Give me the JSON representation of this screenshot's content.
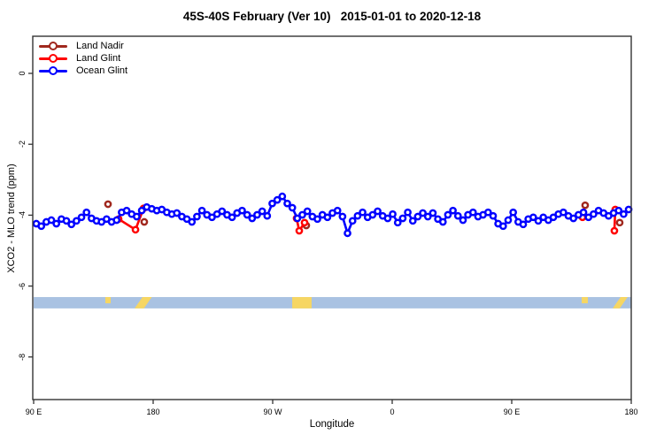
{
  "title": "45S-40S February (Ver 10)   2015-01-01 to 2020-12-18",
  "legend": {
    "items": [
      {
        "label": "Land Nadir",
        "color": "#A0281E"
      },
      {
        "label": "Land Glint",
        "color": "#FF0000"
      },
      {
        "label": "Ocean Glint",
        "color": "#0000FF"
      }
    ]
  },
  "axes": {
    "x": {
      "label": "Longitude",
      "ticks": [
        {
          "deg": 0,
          "label": "90 E"
        },
        {
          "deg": 90,
          "label": "180"
        },
        {
          "deg": 180,
          "label": "90 W"
        },
        {
          "deg": 270,
          "label": "0"
        },
        {
          "deg": 360,
          "label": "90 E"
        },
        {
          "deg": 450,
          "label": "180"
        }
      ]
    },
    "y": {
      "label": "XCO2 - MLO trend (ppm)",
      "ticks": [
        {
          "value": 0,
          "label": "0"
        },
        {
          "value": -2,
          "label": "-2"
        },
        {
          "value": -4,
          "label": "-4"
        },
        {
          "value": -6,
          "label": "-6"
        },
        {
          "value": -8,
          "label": "-8"
        }
      ]
    }
  },
  "chart_data": {
    "type": "line",
    "title": "45S-40S February (Ver 10)   2015-01-01 to 2020-12-18",
    "xlabel": "Longitude",
    "ylabel": "XCO2 - MLO trend (ppm)",
    "x_axis_note": "x axis wraps around the globe: 90E -> 180 -> 90W -> 0 -> 90E -> 180 (450 deg total, plotted as degrees from left edge)",
    "x_range_deg": [
      0,
      450
    ],
    "ylim": [
      -9.3,
      1.05
    ],
    "grid": false,
    "legend_position": "top-left",
    "series": [
      {
        "name": "Ocean Glint",
        "color": "#0000FF",
        "connected": true,
        "x_start_deg": 2,
        "x_step_deg": 3.78,
        "ppm": [
          -4.24,
          -4.31,
          -4.19,
          -4.14,
          -4.24,
          -4.11,
          -4.16,
          -4.26,
          -4.16,
          -4.06,
          -3.92,
          -4.09,
          -4.16,
          -4.19,
          -4.11,
          -4.19,
          -4.14,
          -3.92,
          -3.87,
          -3.97,
          -4.04,
          -3.87,
          -3.77,
          -3.82,
          -3.87,
          -3.84,
          -3.92,
          -3.97,
          -3.94,
          -4.04,
          -4.11,
          -4.19,
          -4.04,
          -3.87,
          -3.99,
          -4.06,
          -3.97,
          -3.89,
          -3.99,
          -4.06,
          -3.94,
          -3.87,
          -3.99,
          -4.09,
          -3.99,
          -3.89,
          -4.02,
          -3.67,
          -3.57,
          -3.47,
          -3.67,
          -3.79,
          -4.09,
          -3.99,
          -3.89,
          -4.04,
          -4.11,
          -3.99,
          -4.06,
          -3.94,
          -3.87,
          -4.04,
          -4.51,
          -4.16,
          -4.02,
          -3.92,
          -4.06,
          -3.99,
          -3.89,
          -4.02,
          -4.09,
          -3.97,
          -4.21,
          -4.09,
          -3.92,
          -4.16,
          -4.04,
          -3.94,
          -4.04,
          -3.94,
          -4.11,
          -4.19,
          -3.99,
          -3.87,
          -4.02,
          -4.14,
          -3.99,
          -3.92,
          -4.04,
          -3.99,
          -3.92,
          -4.02,
          -4.24,
          -4.31,
          -4.14,
          -3.92,
          -4.19,
          -4.26,
          -4.11,
          -4.06,
          -4.16,
          -4.06,
          -4.14,
          -4.06,
          -3.97,
          -3.92,
          -4.02,
          -4.09,
          -3.99,
          -3.92,
          -4.06,
          -3.97,
          -3.87,
          -3.94,
          -4.02,
          -3.94,
          -3.87,
          -3.97,
          -3.84
        ]
      },
      {
        "name": "Land Glint",
        "color": "#FF0000",
        "connected": true,
        "clusters": [
          [
            [
              64,
              -4.11
            ],
            [
              76.7,
              -4.41
            ],
            [
              82.7,
              -3.81
            ]
          ],
          [
            [
              198,
              -4.09
            ],
            [
              200,
              -4.44
            ],
            [
              204,
              -4.21
            ]
          ],
          [
            [
              413.3,
              -4.06
            ]
          ],
          [
            [
              438,
              -3.84
            ],
            [
              437.3,
              -4.44
            ]
          ]
        ]
      },
      {
        "name": "Land Nadir",
        "color": "#A0281E",
        "connected": false,
        "points": [
          [
            56,
            -3.69
          ],
          [
            83.3,
            -4.19
          ],
          [
            205.3,
            -4.29
          ],
          [
            415.3,
            -3.72
          ],
          [
            441.3,
            -4.21
          ]
        ]
      }
    ],
    "surface_band": {
      "description": "ocean/land indicator strip",
      "y_range_ppm": [
        -6.31,
        -6.63
      ],
      "ocean_color": "#A9C2E2",
      "land_color": "#F6D663",
      "land_segments_deg": [
        {
          "range": [
            54,
            58
          ],
          "half": true
        },
        {
          "range": [
            76,
            89
          ],
          "slant": true
        },
        {
          "range": [
            194.7,
            209.3
          ],
          "slant": false
        },
        {
          "range": [
            412.7,
            417.3
          ],
          "half": true
        },
        {
          "range": [
            436,
            447.3
          ],
          "slant": true
        }
      ]
    }
  }
}
